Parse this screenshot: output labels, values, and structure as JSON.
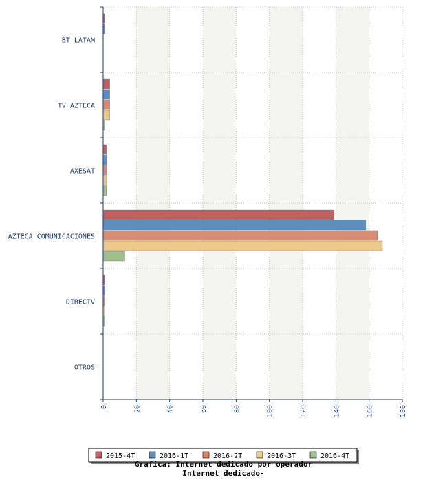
{
  "chart_data": {
    "type": "bar",
    "orientation": "horizontal",
    "title": "Grafica: Internet dedicado por operador",
    "subtitle": "Internet dedicado-",
    "categories": [
      "BT LATAM",
      "TV AZTECA",
      "AXESAT",
      "AZTECA COMUNICACIONES",
      "DIRECTV",
      "OTROS"
    ],
    "series": [
      {
        "name": "2015-4T",
        "color": "#c0605f",
        "values": [
          1,
          4,
          2,
          139,
          1,
          0
        ]
      },
      {
        "name": "2016-1T",
        "color": "#5b8fbf",
        "values": [
          1,
          4,
          2,
          158,
          1,
          0
        ]
      },
      {
        "name": "2016-2T",
        "color": "#d98c72",
        "values": [
          0,
          4,
          2,
          165,
          1,
          0
        ]
      },
      {
        "name": "2016-3T",
        "color": "#ecc98a",
        "values": [
          0,
          4,
          2,
          168,
          1,
          0
        ]
      },
      {
        "name": "2016-4T",
        "color": "#9fbe8c",
        "values": [
          0,
          1,
          2,
          13,
          1,
          0
        ]
      }
    ],
    "xlim": [
      0,
      180
    ],
    "xticks": [
      "0",
      "20",
      "40",
      "60",
      "80",
      "100",
      "120",
      "140",
      "160",
      "180"
    ],
    "grid": true,
    "legend_position": "bottom"
  }
}
